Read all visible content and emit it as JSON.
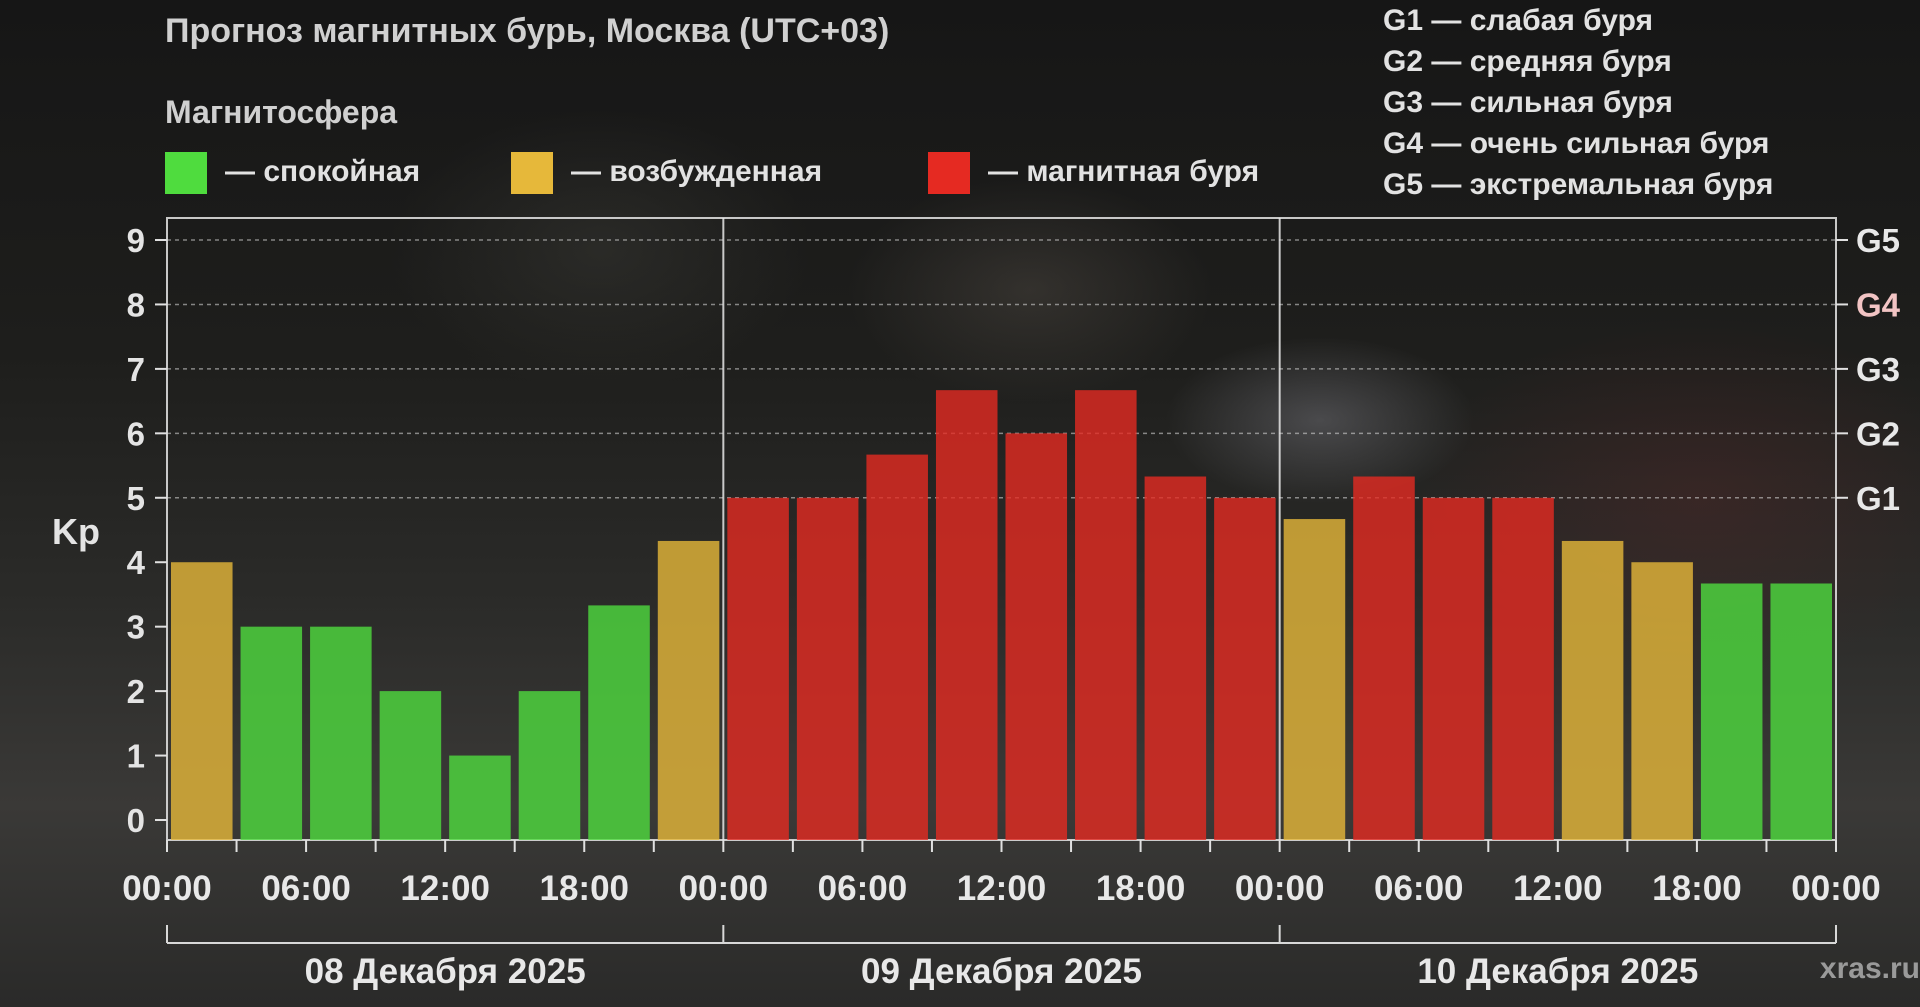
{
  "title": "Прогноз магнитных бурь, Москва (UTC+03)",
  "legend": {
    "heading": "Магнитосфера",
    "items": [
      {
        "label": "— спокойная",
        "color": "#4fdc3e"
      },
      {
        "label": "— возбужденная",
        "color": "#e6b83a"
      },
      {
        "label": "— магнитная буря",
        "color": "#e52a22"
      }
    ]
  },
  "g_scale": [
    "G1 — слабая буря",
    "G2 — средняя буря",
    "G3 — сильная буря",
    "G4 — очень сильная буря",
    "G5 — экстремальная буря"
  ],
  "watermark": "xras.ru",
  "colors": {
    "quiet": "#4fdc3e",
    "active": "#e6b83a",
    "storm": "#e52a22"
  },
  "chart_data": {
    "type": "bar",
    "ylabel": "Kp",
    "ylim": [
      0,
      9
    ],
    "y_ticks": [
      "0",
      "1",
      "2",
      "3",
      "4",
      "5",
      "6",
      "7",
      "8",
      "9"
    ],
    "right_ticks": [
      {
        "label": "G1",
        "value": 5,
        "color": "#e8e8e8"
      },
      {
        "label": "G2",
        "value": 6,
        "color": "#e8e8e8"
      },
      {
        "label": "G3",
        "value": 7,
        "color": "#e8e8e8"
      },
      {
        "label": "G4",
        "value": 8,
        "color": "#f2c4c4"
      },
      {
        "label": "G5",
        "value": 9,
        "color": "#e8e8e8"
      }
    ],
    "x_tick_labels": [
      "00:00",
      "06:00",
      "12:00",
      "18:00",
      "00:00",
      "06:00",
      "12:00",
      "18:00",
      "00:00",
      "06:00",
      "12:00",
      "18:00",
      "00:00"
    ],
    "days": [
      "08 Декабря 2025",
      "09 Декабря 2025",
      "10 Декабря 2025"
    ],
    "interval_hours": 3,
    "values": [
      4.0,
      3.0,
      3.0,
      2.0,
      1.0,
      2.0,
      3.33,
      4.33,
      5.0,
      5.0,
      5.67,
      6.67,
      6.0,
      6.67,
      5.33,
      5.0,
      4.67,
      5.33,
      5.0,
      5.0,
      4.33,
      4.0,
      3.67,
      3.67
    ],
    "levels": [
      "active",
      "quiet",
      "quiet",
      "quiet",
      "quiet",
      "quiet",
      "quiet",
      "active",
      "storm",
      "storm",
      "storm",
      "storm",
      "storm",
      "storm",
      "storm",
      "storm",
      "active",
      "storm",
      "storm",
      "storm",
      "active",
      "active",
      "quiet",
      "quiet"
    ]
  }
}
